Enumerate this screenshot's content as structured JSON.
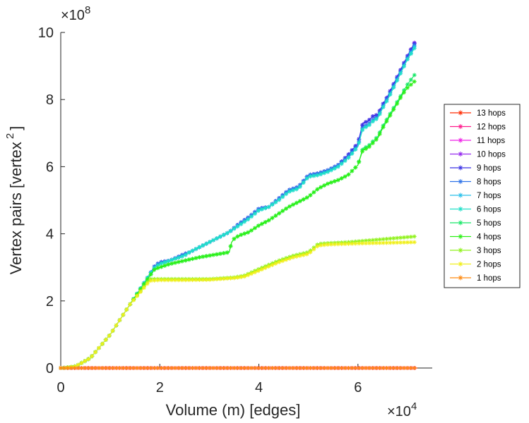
{
  "chart_data": {
    "type": "line",
    "title": "",
    "xlabel": "Volume (m) [edges]",
    "ylabel": "Vertex pairs [vertex",
    "ylabel_superscript": "2",
    "ylabel_close": "]",
    "x_multiplier_base": "×10",
    "x_multiplier_exp": "4",
    "y_multiplier_base": "×10",
    "y_multiplier_exp": "8",
    "xlim": [
      0,
      72000
    ],
    "ylim": [
      0,
      10
    ],
    "xticks": [
      {
        "value": 0,
        "label": "0"
      },
      {
        "value": 20000,
        "label": "2"
      },
      {
        "value": 40000,
        "label": "4"
      },
      {
        "value": 60000,
        "label": "6"
      }
    ],
    "yticks": [
      {
        "value": 0,
        "label": "0"
      },
      {
        "value": 2,
        "label": "2"
      },
      {
        "value": 4,
        "label": "4"
      },
      {
        "value": 6,
        "label": "6"
      },
      {
        "value": 8,
        "label": "8"
      },
      {
        "value": 10,
        "label": "10"
      }
    ],
    "grid": false,
    "legend_position": "right",
    "marker": "asterisk",
    "series": [
      {
        "name": "13 hops",
        "color": "#ff2a00",
        "x": [
          0,
          72000
        ],
        "y": [
          0,
          0
        ]
      },
      {
        "name": "12 hops",
        "color": "#ff1a8c",
        "x": [
          0,
          72000
        ],
        "y": [
          0,
          0
        ]
      },
      {
        "name": "11 hops",
        "color": "#ef1fe6",
        "x": [
          0,
          72000
        ],
        "y": [
          0,
          0
        ]
      },
      {
        "name": "10 hops",
        "color": "#9428ee",
        "x": [
          0,
          500,
          3000,
          6000,
          10000,
          14000,
          18000,
          19000,
          20000,
          22000,
          25000,
          26000,
          28000,
          30000,
          32000,
          34000,
          36000,
          38000,
          40000,
          42000,
          44000,
          46000,
          48000,
          50000,
          52000,
          54000,
          56000,
          58000,
          60000,
          61000,
          62000,
          63000,
          64000,
          65000,
          66000,
          67000,
          68000,
          69000,
          70000,
          71500
        ],
        "y": [
          0,
          0,
          0.05,
          0.3,
          1.0,
          1.9,
          2.8,
          3.05,
          3.15,
          3.2,
          3.4,
          3.45,
          3.6,
          3.75,
          3.9,
          4.05,
          4.3,
          4.5,
          4.75,
          4.8,
          5.05,
          5.3,
          5.4,
          5.75,
          5.8,
          5.9,
          6.05,
          6.35,
          6.7,
          7.3,
          7.35,
          7.5,
          7.55,
          7.85,
          8.1,
          8.4,
          8.7,
          9.0,
          9.3,
          9.72
        ]
      },
      {
        "name": "9 hops",
        "color": "#3a32e4",
        "x": [
          0,
          500,
          3000,
          6000,
          10000,
          14000,
          18000,
          19000,
          20000,
          22000,
          25000,
          26000,
          28000,
          30000,
          32000,
          34000,
          36000,
          38000,
          40000,
          42000,
          44000,
          46000,
          48000,
          50000,
          52000,
          54000,
          56000,
          58000,
          60000,
          61000,
          62000,
          63000,
          64000,
          65000,
          66000,
          67000,
          68000,
          69000,
          70000,
          71500
        ],
        "y": [
          0,
          0,
          0.05,
          0.3,
          1.0,
          1.9,
          2.8,
          3.05,
          3.15,
          3.2,
          3.4,
          3.45,
          3.6,
          3.75,
          3.9,
          4.05,
          4.3,
          4.5,
          4.75,
          4.8,
          5.05,
          5.3,
          5.4,
          5.75,
          5.8,
          5.9,
          6.05,
          6.35,
          6.7,
          7.3,
          7.35,
          7.5,
          7.55,
          7.85,
          8.1,
          8.4,
          8.7,
          9.0,
          9.3,
          9.7
        ]
      },
      {
        "name": "8 hops",
        "color": "#2d72e8",
        "x": [
          0,
          500,
          3000,
          6000,
          10000,
          14000,
          18000,
          19000,
          20000,
          22000,
          25000,
          26000,
          28000,
          30000,
          32000,
          34000,
          36000,
          38000,
          40000,
          42000,
          44000,
          46000,
          48000,
          50000,
          52000,
          54000,
          56000,
          58000,
          60000,
          61000,
          62000,
          63000,
          64000,
          65000,
          66000,
          67000,
          68000,
          69000,
          70000,
          71500
        ],
        "y": [
          0,
          0,
          0.05,
          0.3,
          1.0,
          1.9,
          2.8,
          3.05,
          3.15,
          3.2,
          3.4,
          3.45,
          3.6,
          3.75,
          3.9,
          4.05,
          4.3,
          4.5,
          4.75,
          4.8,
          5.05,
          5.3,
          5.4,
          5.75,
          5.8,
          5.9,
          6.05,
          6.3,
          6.65,
          7.2,
          7.25,
          7.4,
          7.5,
          7.8,
          8.05,
          8.35,
          8.65,
          8.95,
          9.25,
          9.65
        ]
      },
      {
        "name": "7 hops",
        "color": "#26bfea",
        "x": [
          0,
          500,
          3000,
          6000,
          10000,
          14000,
          18000,
          19000,
          20000,
          22000,
          25000,
          26000,
          28000,
          30000,
          32000,
          34000,
          36000,
          38000,
          40000,
          42000,
          44000,
          46000,
          48000,
          50000,
          52000,
          54000,
          56000,
          58000,
          60000,
          61000,
          62000,
          63000,
          64000,
          65000,
          66000,
          67000,
          68000,
          69000,
          70000,
          71500
        ],
        "y": [
          0,
          0,
          0.05,
          0.3,
          1.0,
          1.9,
          2.8,
          3.0,
          3.1,
          3.2,
          3.35,
          3.45,
          3.6,
          3.75,
          3.9,
          4.05,
          4.25,
          4.45,
          4.7,
          4.8,
          5.0,
          5.25,
          5.35,
          5.7,
          5.75,
          5.85,
          6.0,
          6.25,
          6.6,
          7.15,
          7.2,
          7.35,
          7.45,
          7.75,
          8.0,
          8.3,
          8.6,
          8.9,
          9.2,
          9.6
        ]
      },
      {
        "name": "6 hops",
        "color": "#1fe0c8",
        "x": [
          0,
          500,
          3000,
          6000,
          10000,
          14000,
          18000,
          19000,
          20000,
          22000,
          25000,
          26000,
          28000,
          30000,
          32000,
          34000,
          36000,
          38000,
          40000,
          42000,
          44000,
          46000,
          48000,
          50000,
          52000,
          54000,
          56000,
          58000,
          60000,
          61000,
          62000,
          63000,
          64000,
          65000,
          66000,
          67000,
          68000,
          69000,
          70000,
          71500
        ],
        "y": [
          0,
          0,
          0.05,
          0.3,
          1.0,
          1.9,
          2.8,
          3.0,
          3.1,
          3.2,
          3.35,
          3.45,
          3.6,
          3.75,
          3.9,
          4.05,
          4.25,
          4.45,
          4.7,
          4.8,
          5.0,
          5.25,
          5.35,
          5.7,
          5.75,
          5.85,
          6.0,
          6.25,
          6.6,
          7.15,
          7.2,
          7.35,
          7.45,
          7.75,
          8.0,
          8.3,
          8.6,
          8.9,
          9.2,
          9.55
        ]
      },
      {
        "name": "5 hops",
        "color": "#18e868",
        "x": [
          0,
          500,
          3000,
          6000,
          10000,
          14000,
          18000,
          19000,
          20000,
          22000,
          25000,
          28000,
          30000,
          32000,
          34000,
          34500,
          35000,
          36000,
          38000,
          40000,
          42000,
          44000,
          46000,
          48000,
          50000,
          52000,
          54000,
          56000,
          58000,
          60000,
          61000,
          62000,
          63000,
          64000,
          65000,
          66000,
          67000,
          68000,
          69000,
          70000,
          71500
        ],
        "y": [
          0,
          0,
          0.05,
          0.3,
          1.0,
          1.9,
          2.75,
          2.95,
          3.0,
          3.1,
          3.2,
          3.3,
          3.35,
          3.4,
          3.45,
          3.75,
          3.85,
          3.95,
          4.05,
          4.25,
          4.4,
          4.6,
          4.8,
          4.95,
          5.1,
          5.35,
          5.5,
          5.6,
          5.75,
          6.05,
          6.55,
          6.6,
          6.75,
          6.9,
          7.2,
          7.45,
          7.7,
          7.95,
          8.2,
          8.45,
          8.75
        ]
      },
      {
        "name": "4 hops",
        "color": "#2bf015",
        "x": [
          0,
          500,
          3000,
          6000,
          10000,
          14000,
          18000,
          19000,
          20000,
          22000,
          25000,
          28000,
          30000,
          32000,
          34000,
          34500,
          35000,
          36000,
          38000,
          40000,
          42000,
          44000,
          46000,
          48000,
          50000,
          52000,
          54000,
          56000,
          58000,
          60000,
          61000,
          62000,
          63000,
          64000,
          65000,
          66000,
          67000,
          68000,
          69000,
          70000,
          71500
        ],
        "y": [
          0,
          0,
          0.05,
          0.3,
          1.0,
          1.9,
          2.75,
          2.95,
          3.0,
          3.1,
          3.2,
          3.3,
          3.35,
          3.4,
          3.45,
          3.75,
          3.85,
          3.95,
          4.05,
          4.25,
          4.4,
          4.6,
          4.8,
          4.95,
          5.1,
          5.35,
          5.5,
          5.6,
          5.75,
          6.05,
          6.5,
          6.55,
          6.7,
          6.85,
          7.15,
          7.4,
          7.65,
          7.9,
          8.15,
          8.35,
          8.55
        ]
      },
      {
        "name": "3 hops",
        "color": "#8ff21a",
        "x": [
          0,
          500,
          3000,
          6000,
          10000,
          14000,
          18000,
          20000,
          25000,
          30000,
          35000,
          37000,
          40000,
          44000,
          47000,
          50000,
          52000,
          54000,
          58000,
          62000,
          66000,
          71500
        ],
        "y": [
          0,
          0,
          0.05,
          0.3,
          1.0,
          1.9,
          2.65,
          2.65,
          2.65,
          2.65,
          2.7,
          2.75,
          2.95,
          3.2,
          3.35,
          3.45,
          3.7,
          3.72,
          3.75,
          3.8,
          3.85,
          3.92
        ]
      },
      {
        "name": "2 hops",
        "color": "#f0ef1a",
        "x": [
          0,
          500,
          3000,
          6000,
          10000,
          14000,
          18000,
          20000,
          25000,
          30000,
          35000,
          37000,
          40000,
          44000,
          47000,
          50000,
          52000,
          54000,
          58000,
          62000,
          66000,
          71500
        ],
        "y": [
          0,
          0,
          0.05,
          0.3,
          1.0,
          1.9,
          2.6,
          2.62,
          2.62,
          2.63,
          2.68,
          2.72,
          2.9,
          3.15,
          3.3,
          3.4,
          3.65,
          3.68,
          3.7,
          3.72,
          3.73,
          3.75
        ]
      },
      {
        "name": "1 hops",
        "color": "#ff8a10",
        "x": [
          0,
          72000
        ],
        "y": [
          0,
          0
        ]
      }
    ]
  }
}
